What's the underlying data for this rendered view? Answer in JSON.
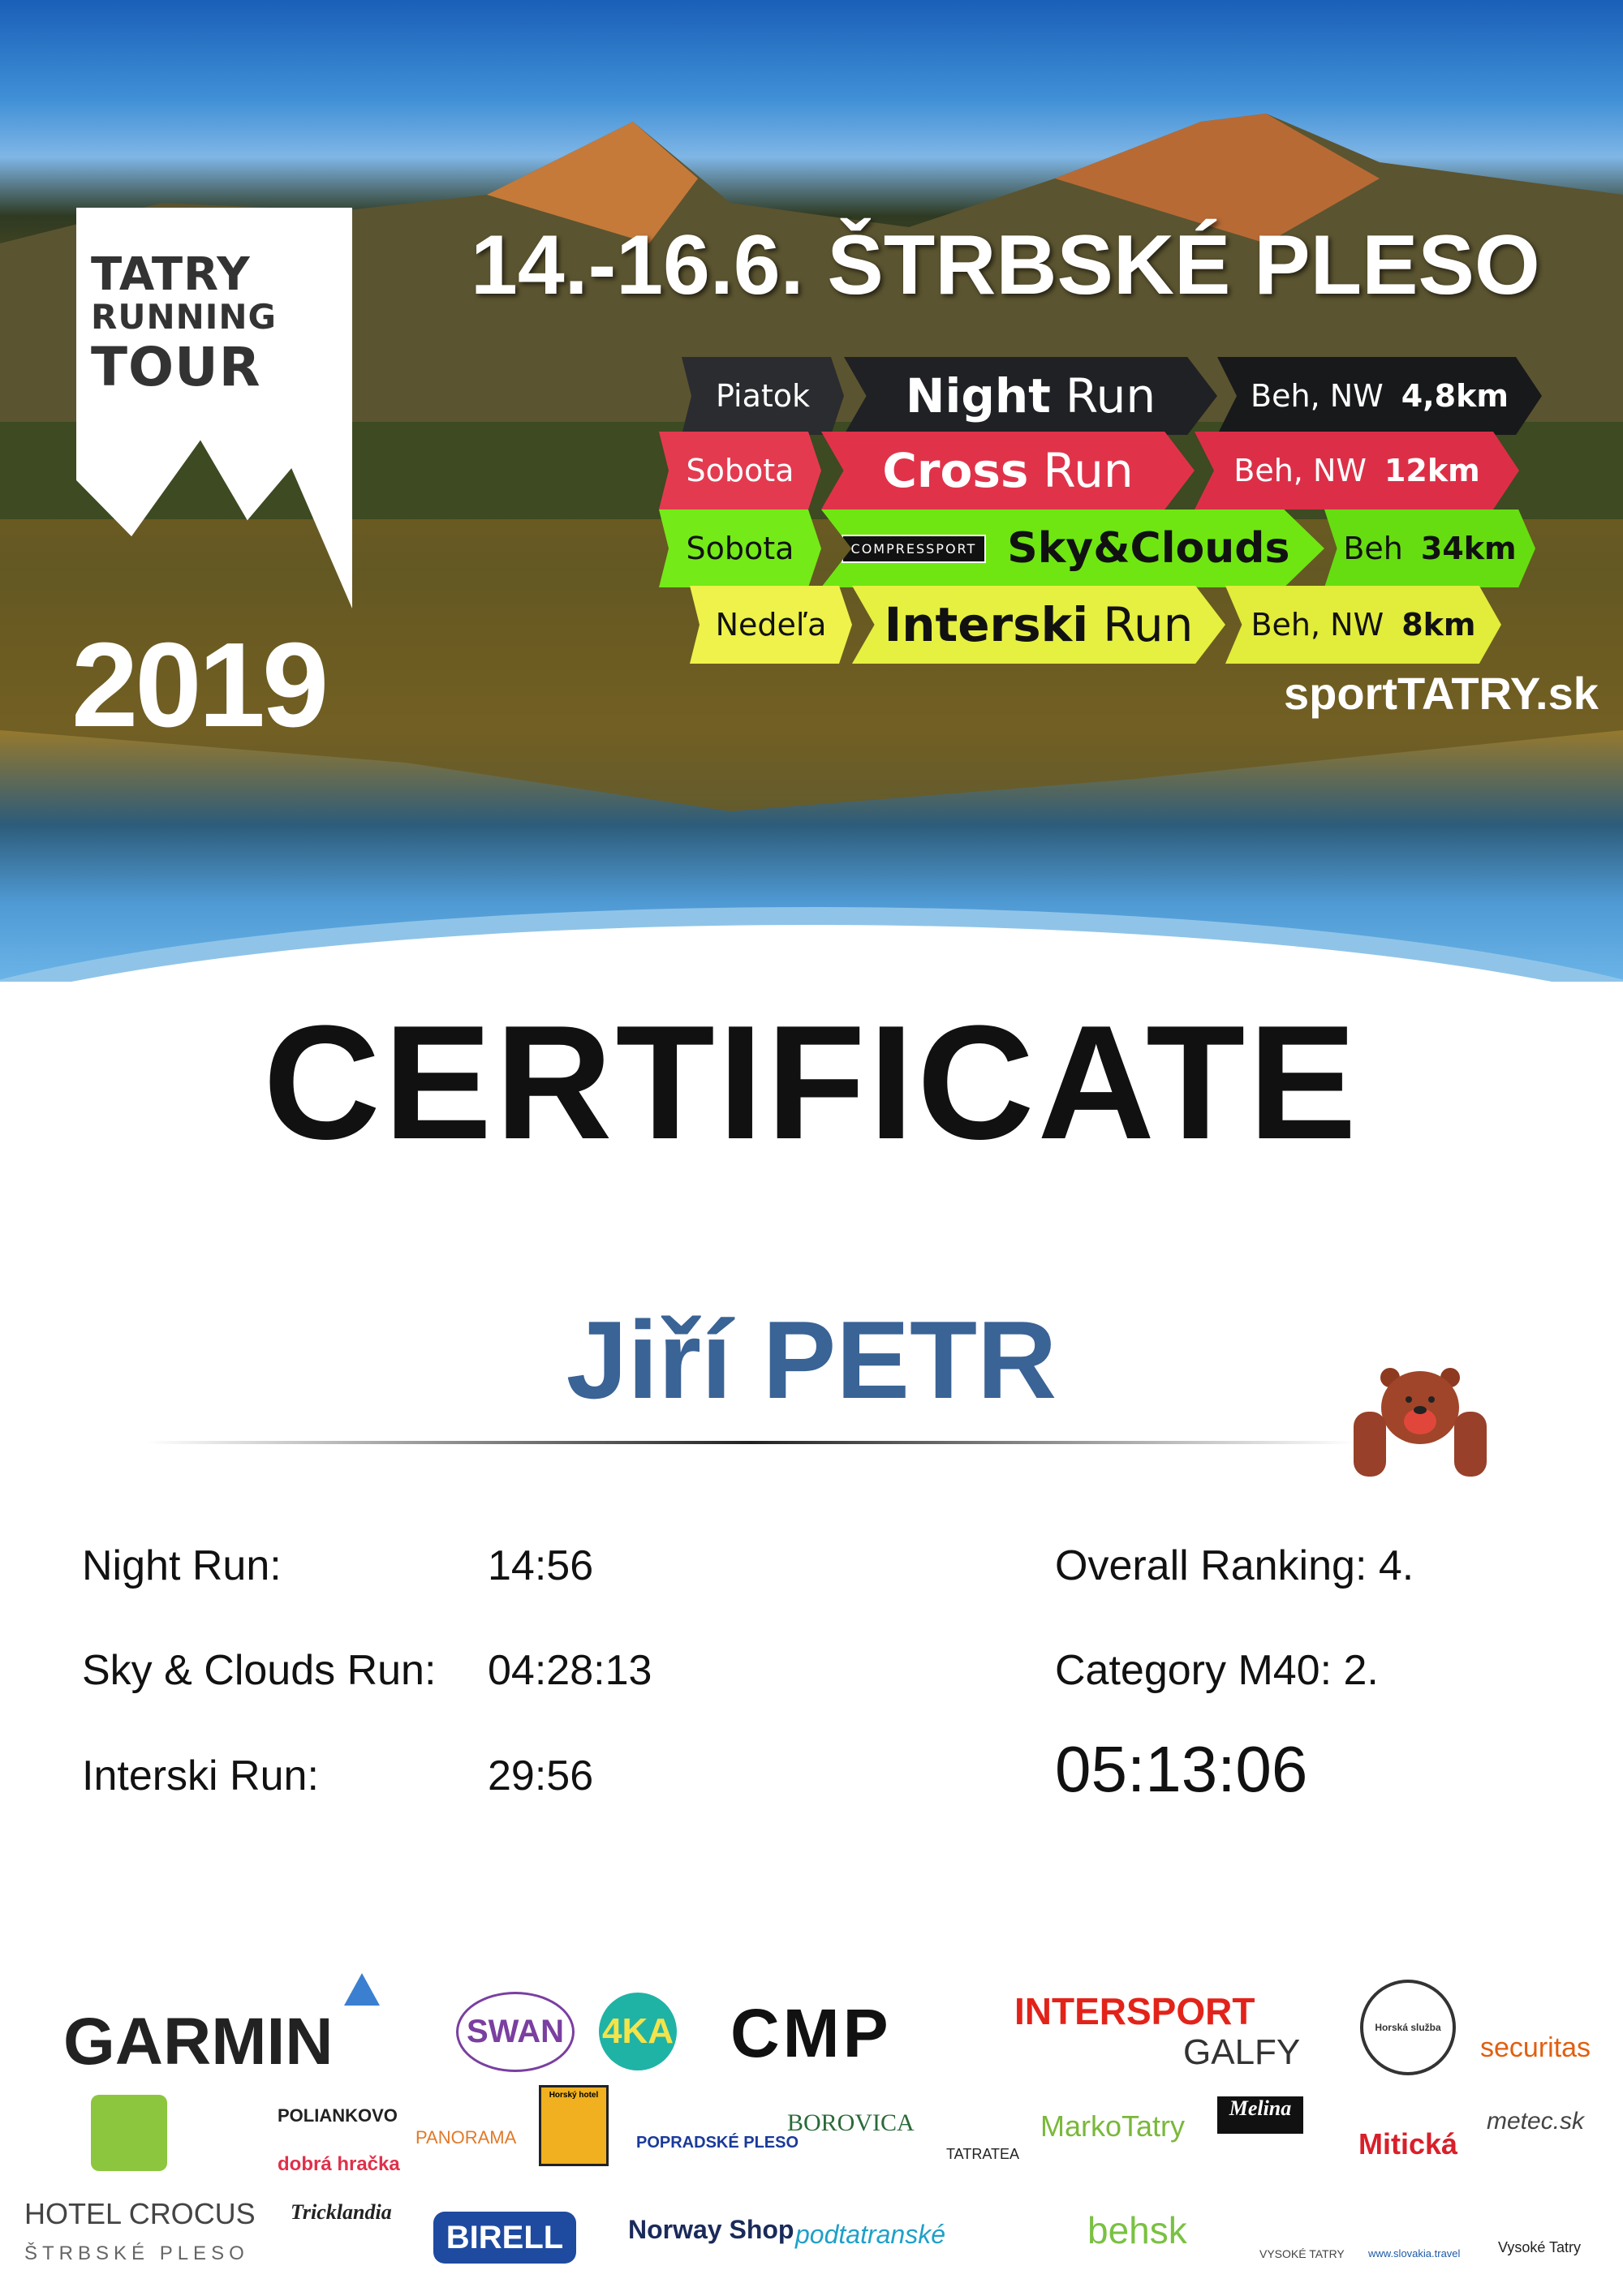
{
  "header": {
    "logo_lines": [
      "TATRY",
      "RUNNING",
      "TOUR"
    ],
    "year": "2019",
    "date_location": "14.-16.6.  ŠTRBSKÉ PLESO",
    "website": "sportTATRY.sk",
    "races": [
      {
        "day": "Piatok",
        "name_bold": "Night",
        "name_light": "Run",
        "type": "Beh, NW",
        "distance": "4,8km",
        "color": "#1f2124",
        "text": "#ffffff"
      },
      {
        "day": "Sobota",
        "name_bold": "Cross",
        "name_light": "Run",
        "type": "Beh, NW",
        "distance": "12km",
        "color": "#e0334a",
        "text": "#ffffff"
      },
      {
        "day": "Sobota",
        "sponsor": "COMPRESSPORT",
        "name_bold": "Sky&Clouds",
        "name_light": "",
        "type": "Beh",
        "distance": "34km",
        "color": "#6fe612",
        "text": "#111111"
      },
      {
        "day": "Nedeľa",
        "name_bold": "Interski",
        "name_light": "Run",
        "type": "Beh, NW",
        "distance": "8km",
        "color": "#e6f040",
        "text": "#111111"
      }
    ]
  },
  "certificate": {
    "title": "CERTIFICATE",
    "participant": "Jiří PETR",
    "name_color": "#3a6396",
    "results": [
      {
        "label": "Night Run:",
        "time": "14:56"
      },
      {
        "label": "Sky & Clouds Run:",
        "time": "04:28:13"
      },
      {
        "label": "Interski Run:",
        "time": "29:56"
      }
    ],
    "overall_ranking": "Overall Ranking: 4.",
    "category": "Category M40: 2.",
    "total_time": "05:13:06",
    "mascot": "bear-icon"
  },
  "sponsors": [
    "GARMIN",
    "SWAN",
    "4KA",
    "CMP",
    "INTERSPORT",
    "GALFY",
    "Horská služba",
    "securitas",
    "POLIANKOVO",
    "PANORAMA",
    "Horský hotel",
    "POPRADSKÉ PLESO",
    "BOROVICA",
    "TATRATEA",
    "MarkoTatry",
    "Melina",
    "Mitická",
    "metec.sk",
    "dobrá hračka",
    "HOTEL CROCUS",
    "ŠTRBSKÉ PLESO",
    "Tricklandia",
    "BIRELL",
    "Norway Shop",
    "podtatranské",
    "behsk",
    "VYSOKÉ TATRY",
    "www.slovakia.travel",
    "Vysoké Tatry"
  ]
}
